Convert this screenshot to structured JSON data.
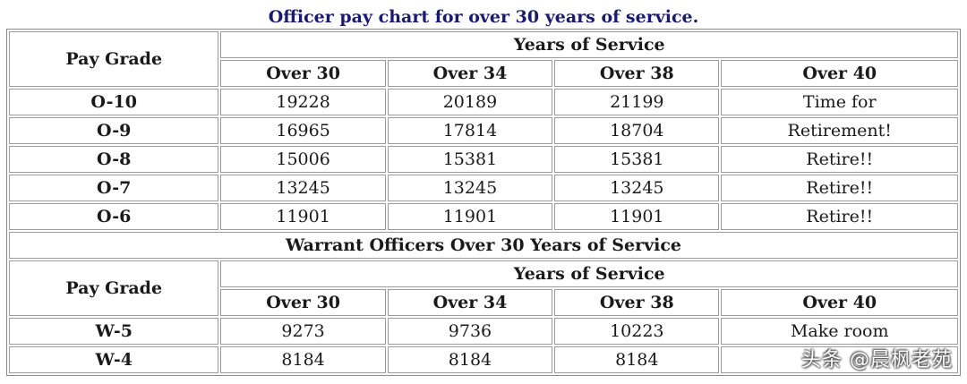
{
  "caption": "Officer pay chart for over 30 years of service.",
  "officers": {
    "pay_grade_header": "Pay Grade",
    "years_header": "Years of Service",
    "columns": [
      "Over 30",
      "Over 34",
      "Over 38",
      "Over 40"
    ],
    "rows": [
      {
        "grade": "O-10",
        "values": [
          "19228",
          "20189",
          "21199",
          "Time for"
        ]
      },
      {
        "grade": "O-9",
        "values": [
          "16965",
          "17814",
          "18704",
          "Retirement!"
        ]
      },
      {
        "grade": "O-8",
        "values": [
          "15006",
          "15381",
          "15381",
          "Retire!!"
        ]
      },
      {
        "grade": "O-7",
        "values": [
          "13245",
          "13245",
          "13245",
          "Retire!!"
        ]
      },
      {
        "grade": "O-6",
        "values": [
          "11901",
          "11901",
          "11901",
          "Retire!!"
        ]
      }
    ]
  },
  "warrant": {
    "section_title": "Warrant Officers Over 30 Years of Service",
    "pay_grade_header": "Pay Grade",
    "years_header": "Years of Service",
    "columns": [
      "Over 30",
      "Over 34",
      "Over 38",
      "Over 40"
    ],
    "rows": [
      {
        "grade": "W-5",
        "values": [
          "9273",
          "9736",
          "10223",
          "Make room"
        ]
      },
      {
        "grade": "W-4",
        "values": [
          "8184",
          "8184",
          "8184",
          ""
        ]
      }
    ]
  },
  "watermark": "头条 @晨枫老苑"
}
